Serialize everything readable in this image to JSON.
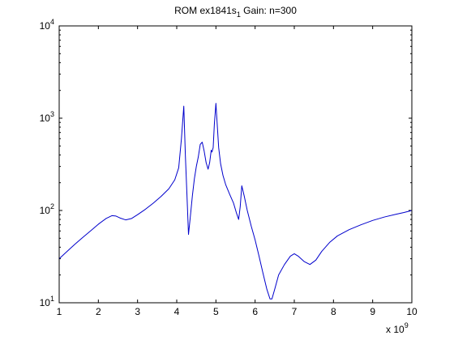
{
  "chart_data": {
    "type": "line",
    "title": "ROM  ex1841s",
    "title_subscript": "1",
    "title_suffix": " Gain:  n=300",
    "xlabel": "",
    "ylabel": "",
    "x_exponent_label": "x 10",
    "x_exponent_power": "9",
    "xlim": [
      1,
      10
    ],
    "ylim": [
      10,
      10000
    ],
    "y_scale": "log",
    "grid": false,
    "legend": "none",
    "x_ticks": [
      1,
      2,
      3,
      4,
      5,
      6,
      7,
      8,
      9,
      10
    ],
    "x_tick_labels": [
      "1",
      "2",
      "3",
      "4",
      "5",
      "6",
      "7",
      "8",
      "9",
      "10"
    ],
    "y_ticks": [
      10,
      100,
      1000,
      10000
    ],
    "y_tick_base": "10",
    "y_tick_powers": [
      "1",
      "2",
      "3",
      "4"
    ],
    "series": [
      {
        "color": "#0000cc",
        "x": [
          1.0,
          1.2,
          1.4,
          1.6,
          1.8,
          2.0,
          2.2,
          2.35,
          2.45,
          2.55,
          2.7,
          2.85,
          3.0,
          3.2,
          3.4,
          3.6,
          3.8,
          3.95,
          4.05,
          4.12,
          4.18,
          4.22,
          4.26,
          4.3,
          4.34,
          4.4,
          4.45,
          4.5,
          4.55,
          4.6,
          4.65,
          4.7,
          4.75,
          4.8,
          4.84,
          4.88,
          4.9,
          4.93,
          4.96,
          5.0,
          5.03,
          5.07,
          5.12,
          5.18,
          5.25,
          5.35,
          5.45,
          5.52,
          5.58,
          5.62,
          5.66,
          5.72,
          5.8,
          5.9,
          6.0,
          6.1,
          6.2,
          6.3,
          6.38,
          6.43,
          6.5,
          6.6,
          6.75,
          6.9,
          7.0,
          7.1,
          7.25,
          7.4,
          7.55,
          7.7,
          7.9,
          8.1,
          8.4,
          8.7,
          9.0,
          9.3,
          9.6,
          9.8,
          10.0
        ],
        "y": [
          30,
          36,
          43,
          51,
          60,
          71,
          82,
          88,
          87,
          83,
          79,
          82,
          90,
          103,
          120,
          142,
          172,
          215,
          290,
          600,
          1350,
          400,
          150,
          55,
          80,
          145,
          220,
          300,
          380,
          520,
          550,
          440,
          330,
          280,
          330,
          450,
          430,
          480,
          860,
          1450,
          900,
          480,
          320,
          240,
          190,
          150,
          120,
          95,
          80,
          110,
          185,
          145,
          100,
          68,
          48,
          32,
          21,
          14,
          11,
          11,
          14,
          20,
          26,
          32,
          34,
          32,
          28,
          26,
          29,
          36,
          45,
          53,
          62,
          70,
          78,
          85,
          91,
          95,
          100
        ]
      }
    ]
  }
}
